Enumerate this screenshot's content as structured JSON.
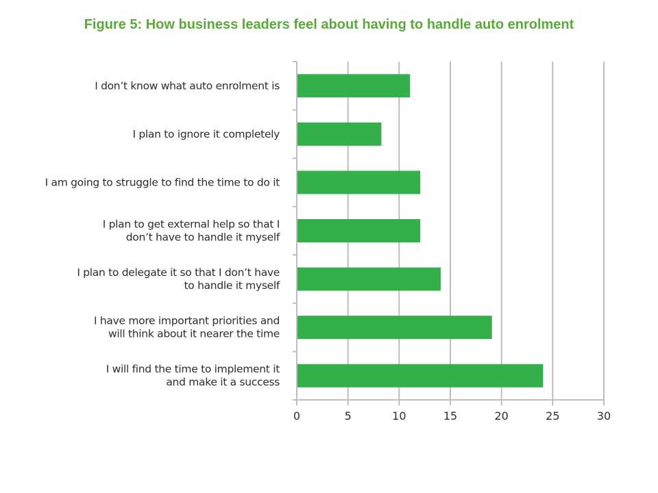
{
  "title": "Figure  5: How business leaders feel about having to handle auto enrolment",
  "chart_data": {
    "type": "bar",
    "orientation": "horizontal",
    "categories": [
      [
        "I don’t know what auto enrolment is"
      ],
      [
        "I plan to ignore it completely"
      ],
      [
        "I am going to struggle to find the time to do it"
      ],
      [
        "I plan to get external help so that I",
        "don’t have to handle it myself"
      ],
      [
        "I plan to delegate it so that I don’t have",
        "to handle it myself"
      ],
      [
        "I have more important priorities and",
        "will think about it nearer the time"
      ],
      [
        "I will find the time to implement it",
        "and make it a success"
      ]
    ],
    "values": [
      11,
      8.2,
      12,
      12,
      14,
      19,
      24
    ],
    "xlim": [
      0,
      30
    ],
    "xticks": [
      "0",
      "5",
      "10",
      "15",
      "20",
      "25",
      "30"
    ],
    "grid": true,
    "bar_color": "#33b04a",
    "grid_color": "#bdbdbd",
    "title_color": "#5aaa3a"
  }
}
